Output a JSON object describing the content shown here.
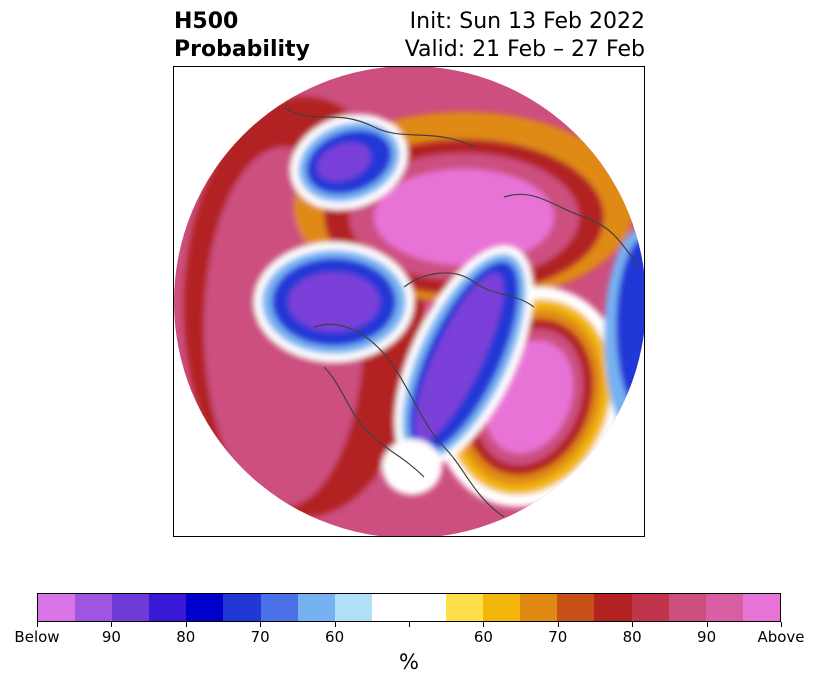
{
  "title": {
    "left_line1": "H500",
    "left_line2": "Probability",
    "right_line1": "Init: Sun 13 Feb 2022",
    "right_line2": "Valid: 21 Feb – 27 Feb"
  },
  "colorbar": {
    "unit": "%",
    "colors": [
      "#d973e6",
      "#9e55e0",
      "#6e3bd9",
      "#3a19d6",
      "#0000cc",
      "#2238d6",
      "#4a72e6",
      "#76b2f2",
      "#b2dff8",
      "#ffffff",
      "#ffffff",
      "#ffe04a",
      "#f2b70a",
      "#e08a14",
      "#c65018",
      "#b22222",
      "#c0344c",
      "#cc4f7f",
      "#d95fa5",
      "#e873d6"
    ],
    "tick_labels": [
      "Below",
      "90",
      "80",
      "70",
      "60",
      "",
      "60",
      "70",
      "80",
      "90",
      "Above"
    ]
  },
  "map": {
    "palette": {
      "above_high": "#e873d6",
      "above_mid": "#cc4f7f",
      "above_low": "#b22222",
      "orange": "#e08a14",
      "yellow": "#f2b70a",
      "neutral": "#ffffff",
      "below_low": "#76b2f2",
      "below_mid": "#2238d6",
      "below_high": "#7a3fd9",
      "coast": "#404040"
    }
  }
}
